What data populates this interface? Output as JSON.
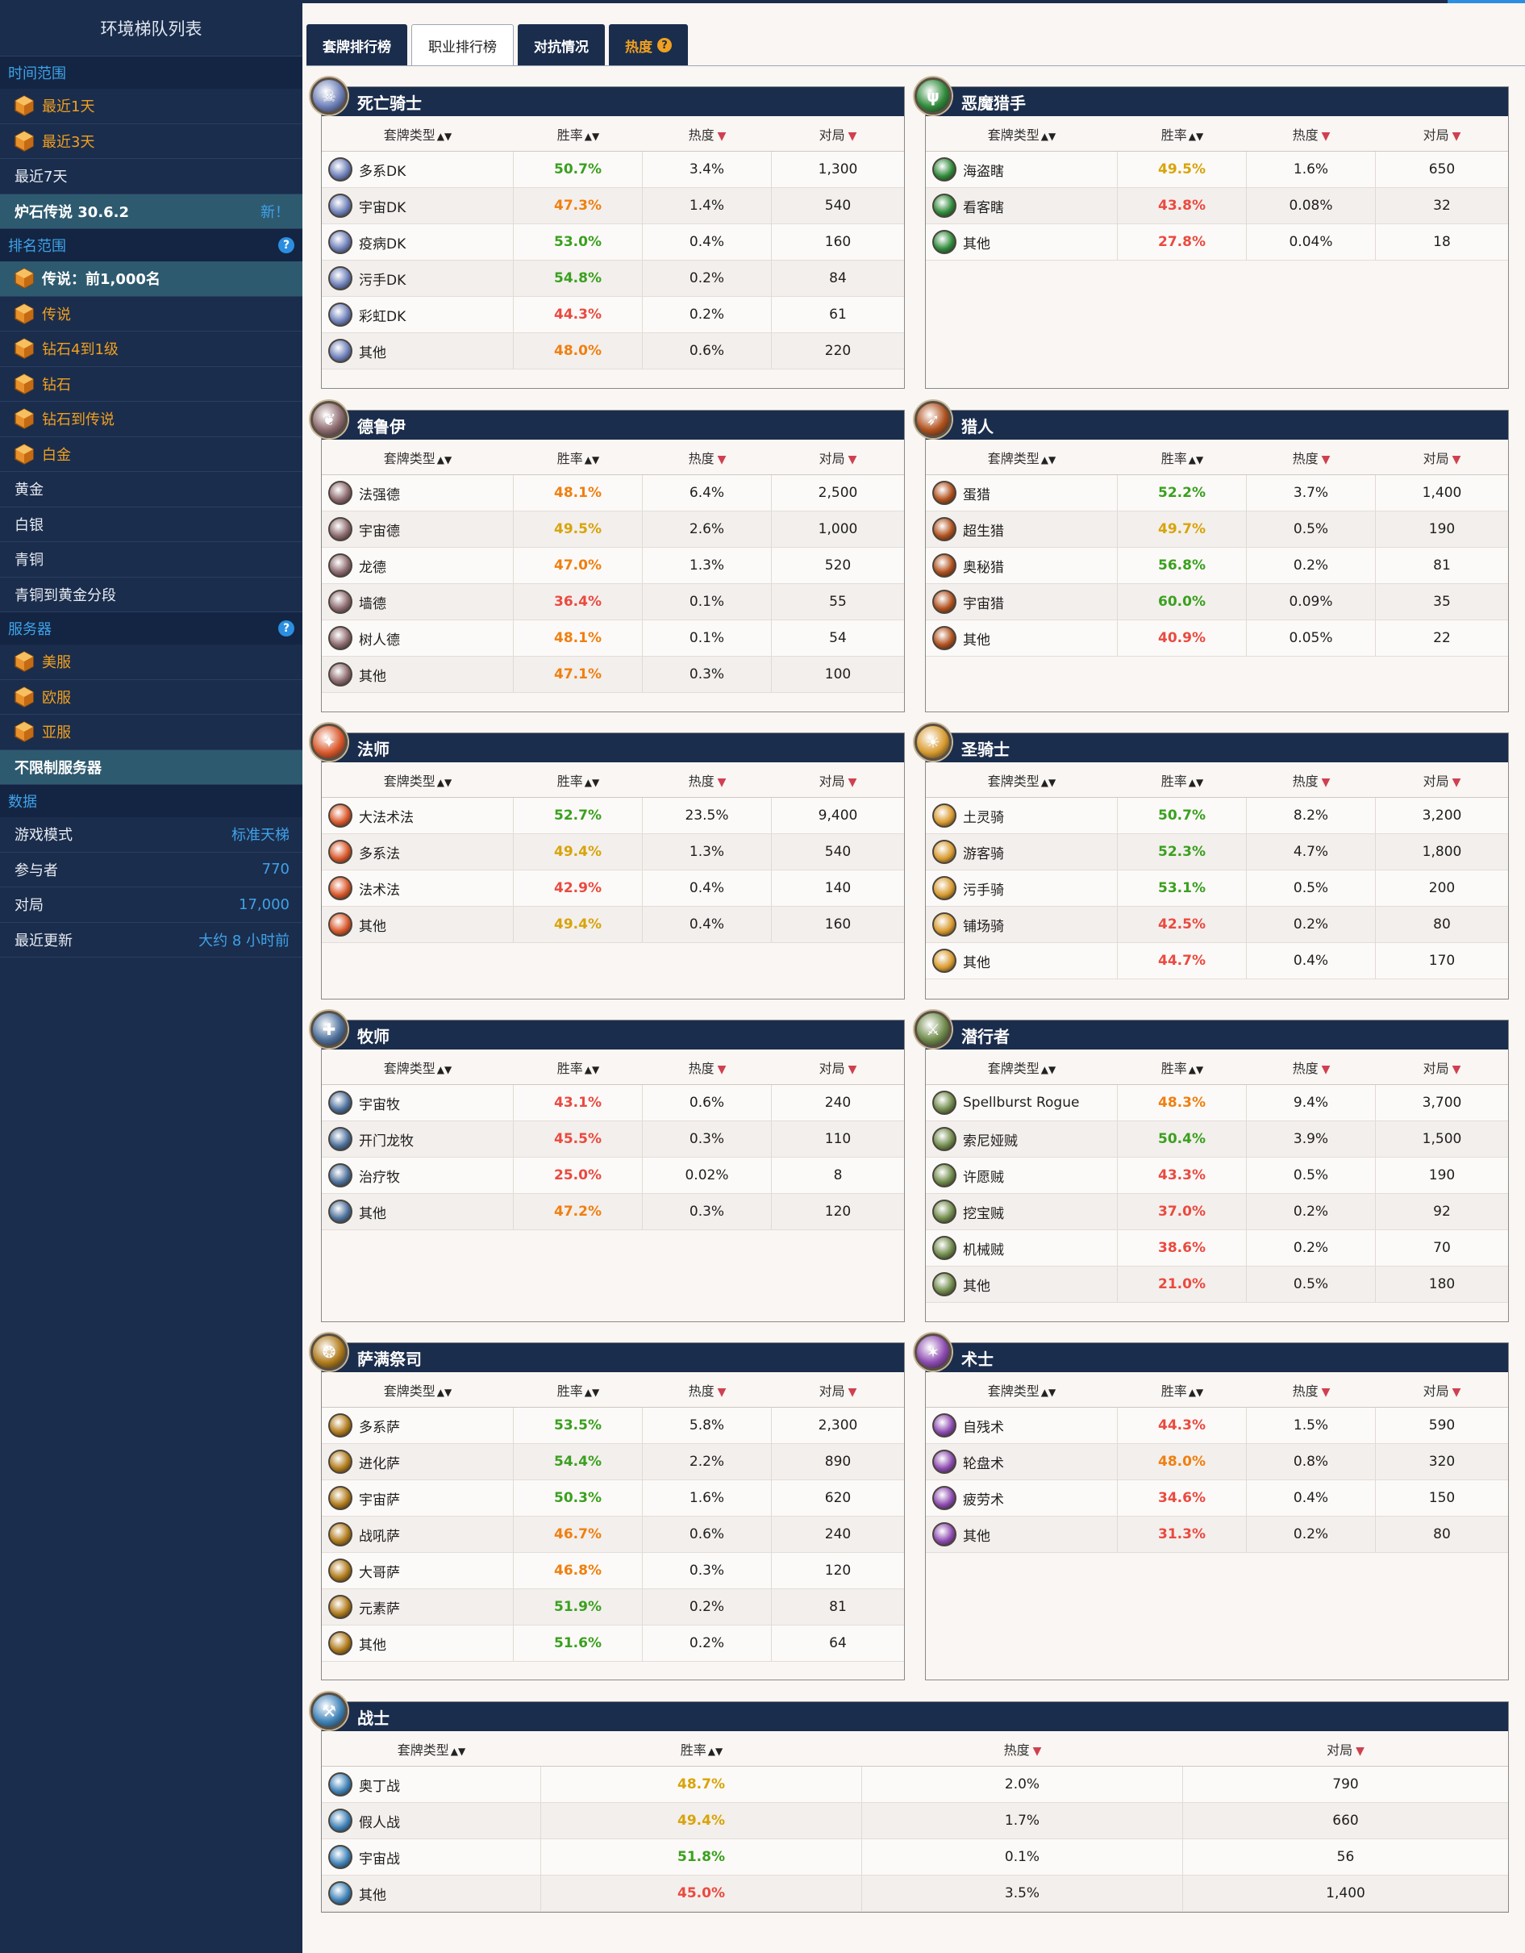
{
  "sidebar": {
    "title": "环境梯队列表",
    "time_section": "时间范围",
    "time_items": [
      "最近1天",
      "最近3天",
      "最近7天"
    ],
    "patch_label": "炉石传说 30.6.2",
    "patch_new": "新！",
    "rank_section": "排名范围",
    "rank_items": [
      "传说：前1,000名",
      "传说",
      "钻石4到1级",
      "钻石",
      "钻石到传说",
      "白金",
      "黄金",
      "白银",
      "青铜",
      "青铜到黄金分段"
    ],
    "server_section": "服务器",
    "server_items": [
      "美服",
      "欧服",
      "亚服",
      "不限制服务器"
    ],
    "data_section": "数据",
    "data_items": [
      {
        "label": "游戏模式",
        "value": "标准天梯"
      },
      {
        "label": "参与者",
        "value": "770"
      },
      {
        "label": "对局",
        "value": "17,000"
      },
      {
        "label": "最近更新",
        "value": "大约 8 小时前"
      }
    ]
  },
  "tabs": [
    "套牌排行榜",
    "职业排行榜",
    "对抗情况",
    "热度"
  ],
  "columns": {
    "deck": "套牌类型",
    "winrate": "胜率",
    "popularity": "热度",
    "games": "对局"
  },
  "classes": [
    {
      "name": "死亡骑士",
      "icon": "death-knight-icon",
      "color": "#6d7fb8",
      "decks": [
        {
          "name": "多系DK",
          "wr": "50.7%",
          "c": "g",
          "pop": "3.4%",
          "games": "1,300"
        },
        {
          "name": "宇宙DK",
          "wr": "47.3%",
          "c": "o",
          "pop": "1.4%",
          "games": "540"
        },
        {
          "name": "疫病DK",
          "wr": "53.0%",
          "c": "g",
          "pop": "0.4%",
          "games": "160"
        },
        {
          "name": "污手DK",
          "wr": "54.8%",
          "c": "g",
          "pop": "0.2%",
          "games": "84"
        },
        {
          "name": "彩虹DK",
          "wr": "44.3%",
          "c": "r",
          "pop": "0.2%",
          "games": "61"
        },
        {
          "name": "其他",
          "wr": "48.0%",
          "c": "o",
          "pop": "0.6%",
          "games": "220"
        }
      ]
    },
    {
      "name": "恶魔猎手",
      "icon": "demon-hunter-icon",
      "color": "#2f8a3a",
      "decks": [
        {
          "name": "海盗瞎",
          "wr": "49.5%",
          "c": "y",
          "pop": "1.6%",
          "games": "650"
        },
        {
          "name": "看客瞎",
          "wr": "43.8%",
          "c": "r",
          "pop": "0.08%",
          "games": "32"
        },
        {
          "name": "其他",
          "wr": "27.8%",
          "c": "r",
          "pop": "0.04%",
          "games": "18"
        }
      ]
    },
    {
      "name": "德鲁伊",
      "icon": "druid-icon",
      "color": "#8c6a6e",
      "decks": [
        {
          "name": "法强德",
          "wr": "48.1%",
          "c": "o",
          "pop": "6.4%",
          "games": "2,500"
        },
        {
          "name": "宇宙德",
          "wr": "49.5%",
          "c": "y",
          "pop": "2.6%",
          "games": "1,000"
        },
        {
          "name": "龙德",
          "wr": "47.0%",
          "c": "o",
          "pop": "1.3%",
          "games": "520"
        },
        {
          "name": "墙德",
          "wr": "36.4%",
          "c": "r",
          "pop": "0.1%",
          "games": "55"
        },
        {
          "name": "树人德",
          "wr": "48.1%",
          "c": "o",
          "pop": "0.1%",
          "games": "54"
        },
        {
          "name": "其他",
          "wr": "47.1%",
          "c": "o",
          "pop": "0.3%",
          "games": "100"
        }
      ]
    },
    {
      "name": "猎人",
      "icon": "hunter-icon",
      "color": "#b0501c",
      "decks": [
        {
          "name": "蛋猎",
          "wr": "52.2%",
          "c": "g",
          "pop": "3.7%",
          "games": "1,400"
        },
        {
          "name": "超生猎",
          "wr": "49.7%",
          "c": "y",
          "pop": "0.5%",
          "games": "190"
        },
        {
          "name": "奥秘猎",
          "wr": "56.8%",
          "c": "g",
          "pop": "0.2%",
          "games": "81"
        },
        {
          "name": "宇宙猎",
          "wr": "60.0%",
          "c": "g",
          "pop": "0.09%",
          "games": "35"
        },
        {
          "name": "其他",
          "wr": "40.9%",
          "c": "r",
          "pop": "0.05%",
          "games": "22"
        }
      ]
    },
    {
      "name": "法师",
      "icon": "mage-icon",
      "color": "#d9572a",
      "decks": [
        {
          "name": "大法术法",
          "wr": "52.7%",
          "c": "g",
          "pop": "23.5%",
          "games": "9,400"
        },
        {
          "name": "多系法",
          "wr": "49.4%",
          "c": "y",
          "pop": "1.3%",
          "games": "540"
        },
        {
          "name": "法术法",
          "wr": "42.9%",
          "c": "r",
          "pop": "0.4%",
          "games": "140"
        },
        {
          "name": "其他",
          "wr": "49.4%",
          "c": "y",
          "pop": "0.4%",
          "games": "160"
        }
      ]
    },
    {
      "name": "圣骑士",
      "icon": "paladin-icon",
      "color": "#d89a2e",
      "decks": [
        {
          "name": "土灵骑",
          "wr": "50.7%",
          "c": "g",
          "pop": "8.2%",
          "games": "3,200"
        },
        {
          "name": "游客骑",
          "wr": "52.3%",
          "c": "g",
          "pop": "4.7%",
          "games": "1,800"
        },
        {
          "name": "污手骑",
          "wr": "53.1%",
          "c": "g",
          "pop": "0.5%",
          "games": "200"
        },
        {
          "name": "铺场骑",
          "wr": "42.5%",
          "c": "r",
          "pop": "0.2%",
          "games": "80"
        },
        {
          "name": "其他",
          "wr": "44.7%",
          "c": "r",
          "pop": "0.4%",
          "games": "170"
        }
      ]
    },
    {
      "name": "牧师",
      "icon": "priest-icon",
      "color": "#4c6f9a",
      "decks": [
        {
          "name": "宇宙牧",
          "wr": "43.1%",
          "c": "r",
          "pop": "0.6%",
          "games": "240"
        },
        {
          "name": "开门龙牧",
          "wr": "45.5%",
          "c": "r",
          "pop": "0.3%",
          "games": "110"
        },
        {
          "name": "治疗牧",
          "wr": "25.0%",
          "c": "r",
          "pop": "0.02%",
          "games": "8"
        },
        {
          "name": "其他",
          "wr": "47.2%",
          "c": "o",
          "pop": "0.3%",
          "games": "120"
        }
      ]
    },
    {
      "name": "潜行者",
      "icon": "rogue-icon",
      "color": "#6f8a4a",
      "decks": [
        {
          "name": "Spellburst Rogue",
          "wr": "48.3%",
          "c": "o",
          "pop": "9.4%",
          "games": "3,700"
        },
        {
          "name": "索尼娅贼",
          "wr": "50.4%",
          "c": "g",
          "pop": "3.9%",
          "games": "1,500"
        },
        {
          "name": "许愿贼",
          "wr": "43.3%",
          "c": "r",
          "pop": "0.5%",
          "games": "190"
        },
        {
          "name": "挖宝贼",
          "wr": "37.0%",
          "c": "r",
          "pop": "0.2%",
          "games": "92"
        },
        {
          "name": "机械贼",
          "wr": "38.6%",
          "c": "r",
          "pop": "0.2%",
          "games": "70"
        },
        {
          "name": "其他",
          "wr": "21.0%",
          "c": "r",
          "pop": "0.5%",
          "games": "180"
        }
      ]
    },
    {
      "name": "萨满祭司",
      "icon": "shaman-icon",
      "color": "#b07a1a",
      "decks": [
        {
          "name": "多系萨",
          "wr": "53.5%",
          "c": "g",
          "pop": "5.8%",
          "games": "2,300"
        },
        {
          "name": "进化萨",
          "wr": "54.4%",
          "c": "g",
          "pop": "2.2%",
          "games": "890"
        },
        {
          "name": "宇宙萨",
          "wr": "50.3%",
          "c": "g",
          "pop": "1.6%",
          "games": "620"
        },
        {
          "name": "战吼萨",
          "wr": "46.7%",
          "c": "o",
          "pop": "0.6%",
          "games": "240"
        },
        {
          "name": "大哥萨",
          "wr": "46.8%",
          "c": "o",
          "pop": "0.3%",
          "games": "120"
        },
        {
          "name": "元素萨",
          "wr": "51.9%",
          "c": "g",
          "pop": "0.2%",
          "games": "81"
        },
        {
          "name": "其他",
          "wr": "51.6%",
          "c": "g",
          "pop": "0.2%",
          "games": "64"
        }
      ]
    },
    {
      "name": "术士",
      "icon": "warlock-icon",
      "color": "#8c4ab0",
      "decks": [
        {
          "name": "自残术",
          "wr": "44.3%",
          "c": "r",
          "pop": "1.5%",
          "games": "590"
        },
        {
          "name": "轮盘术",
          "wr": "48.0%",
          "c": "o",
          "pop": "0.8%",
          "games": "320"
        },
        {
          "name": "疲劳术",
          "wr": "34.6%",
          "c": "r",
          "pop": "0.4%",
          "games": "150"
        },
        {
          "name": "其他",
          "wr": "31.3%",
          "c": "r",
          "pop": "0.2%",
          "games": "80"
        }
      ]
    },
    {
      "name": "战士",
      "icon": "warrior-icon",
      "color": "#3f82b8",
      "decks": [
        {
          "name": "奥丁战",
          "wr": "48.7%",
          "c": "y",
          "pop": "2.0%",
          "games": "790"
        },
        {
          "name": "假人战",
          "wr": "49.4%",
          "c": "y",
          "pop": "1.7%",
          "games": "660"
        },
        {
          "name": "宇宙战",
          "wr": "51.8%",
          "c": "g",
          "pop": "0.1%",
          "games": "56"
        },
        {
          "name": "其他",
          "wr": "45.0%",
          "c": "r",
          "pop": "3.5%",
          "games": "1,400"
        }
      ]
    }
  ]
}
